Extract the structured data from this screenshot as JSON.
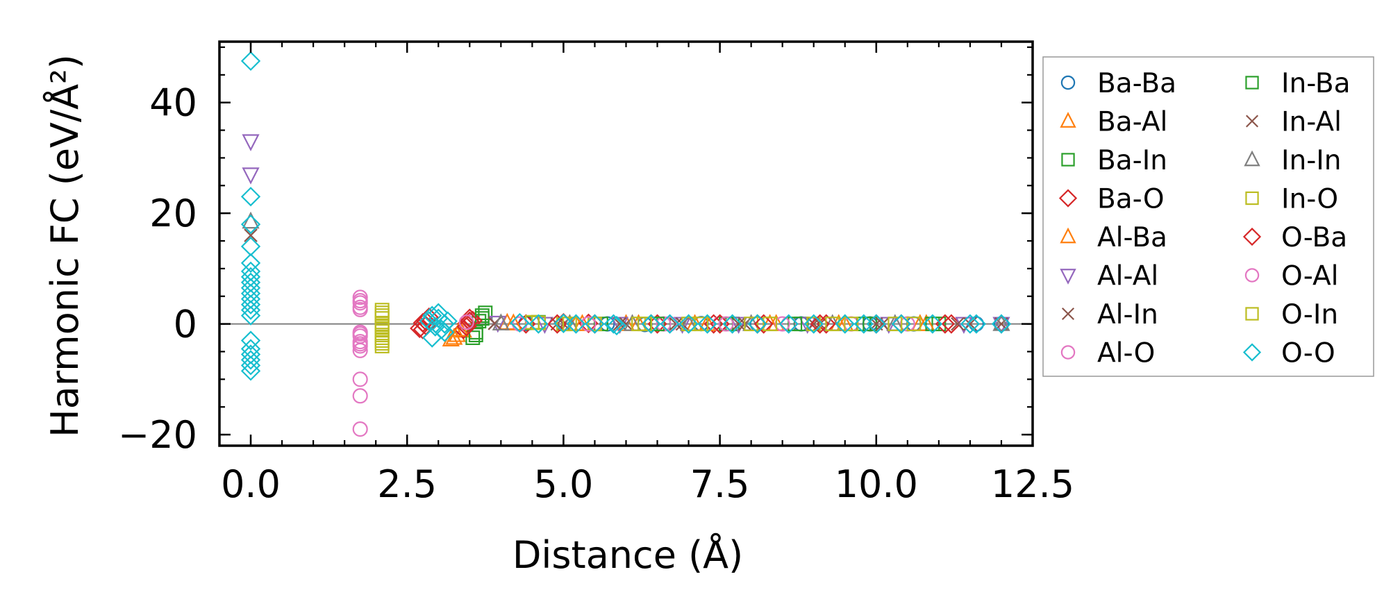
{
  "chart_data": {
    "type": "scatter",
    "title": "",
    "xlabel": "Distance (Å)",
    "ylabel": "Harmonic FC (eV/Å²)",
    "xlim": [
      -0.5,
      12.5
    ],
    "ylim": [
      -22,
      51
    ],
    "xticks": [
      0.0,
      2.5,
      5.0,
      7.5,
      10.0,
      12.5
    ],
    "xtick_labels": [
      "0.0",
      "2.5",
      "5.0",
      "7.5",
      "10.0",
      "12.5"
    ],
    "yticks": [
      -20,
      0,
      20,
      40
    ],
    "ytick_labels": [
      "−20",
      "0",
      "20",
      "40"
    ],
    "zero_line": true,
    "legend_position": "outside-right",
    "legend_columns": 2,
    "series": [
      {
        "name": "Ba-Ba",
        "marker": "circle",
        "color": "#1f77b4",
        "x": [
          4.4,
          5.7,
          6.3,
          7.2,
          8.1,
          8.8,
          9.9,
          10.6,
          11.6,
          12.0
        ],
        "y": [
          0.1,
          0.0,
          -0.1,
          0.05,
          0.0,
          0.0,
          0.0,
          0.0,
          0.0,
          0.0
        ]
      },
      {
        "name": "Ba-Al",
        "marker": "triangle-up",
        "color": "#ff7f0e",
        "x": [
          3.2,
          3.3,
          3.4,
          4.1,
          5.2,
          6.0,
          7.1,
          8.3,
          9.4,
          10.7
        ],
        "y": [
          -2.8,
          -2.0,
          -1.2,
          0.2,
          0.0,
          0.0,
          0.0,
          0.0,
          0.0,
          0.0
        ]
      },
      {
        "name": "Ba-In",
        "marker": "square",
        "color": "#2ca02c",
        "x": [
          3.55,
          3.6,
          3.65,
          3.7,
          3.75,
          4.6,
          5.6,
          6.6,
          7.7,
          8.8,
          9.9,
          11.0
        ],
        "y": [
          -2.5,
          -1.5,
          0.5,
          1.5,
          2.0,
          0.3,
          0.0,
          0.0,
          0.0,
          0.0,
          0.0,
          0.0
        ]
      },
      {
        "name": "Ba-O",
        "marker": "diamond",
        "color": "#d62728",
        "x": [
          2.75,
          2.8,
          2.85,
          3.4,
          3.45,
          3.5,
          3.55,
          4.4,
          5.0,
          5.5,
          6.5,
          7.4,
          8.1,
          9.2,
          10.4,
          11.2
        ],
        "y": [
          -1.0,
          0.5,
          1.2,
          -1.0,
          0.0,
          1.0,
          0.6,
          0.0,
          0.2,
          0.0,
          0.0,
          0.0,
          0.0,
          0.0,
          0.0,
          0.0
        ]
      },
      {
        "name": "Al-Ba",
        "marker": "triangle-up",
        "color": "#ff7f0e",
        "x": [
          3.25,
          3.35,
          4.2,
          5.3,
          6.2,
          7.3,
          8.4,
          9.5,
          10.8
        ],
        "y": [
          -2.5,
          -1.0,
          0.1,
          0.0,
          0.0,
          0.0,
          0.0,
          0.0,
          0.0
        ]
      },
      {
        "name": "Al-Al",
        "marker": "triangle-down",
        "color": "#9467bd",
        "x": [
          0.0,
          0.0,
          3.95,
          4.7,
          5.9,
          6.9,
          7.8,
          8.9,
          10.2,
          11.4,
          12.0
        ],
        "y": [
          33.0,
          27.0,
          0.2,
          0.0,
          0.0,
          0.0,
          0.0,
          0.0,
          0.0,
          0.0,
          0.0
        ]
      },
      {
        "name": "Al-In",
        "marker": "x",
        "color": "#8c564b",
        "x": [
          0.0,
          3.9,
          4.9,
          5.9,
          6.8,
          7.8,
          9.0,
          10.0,
          11.3,
          12.0
        ],
        "y": [
          16.0,
          0.1,
          0.0,
          0.0,
          0.0,
          0.0,
          0.0,
          0.0,
          0.0,
          0.0
        ]
      },
      {
        "name": "Al-O",
        "marker": "circle",
        "color": "#e377c2",
        "x": [
          1.75,
          1.75,
          1.75,
          1.75,
          1.75,
          1.75,
          1.75,
          1.75,
          1.75,
          1.75,
          1.75,
          3.5,
          4.3,
          5.5,
          6.6,
          7.5,
          8.6,
          9.6,
          10.5
        ],
        "y": [
          4.8,
          3.8,
          2.6,
          -1.5,
          -2.2,
          -3.2,
          -4.0,
          -4.8,
          -10.0,
          -13.0,
          -19.0,
          0.5,
          0.0,
          0.0,
          0.0,
          0.0,
          0.0,
          0.0,
          0.0
        ]
      },
      {
        "name": "In-Ba",
        "marker": "square",
        "color": "#2ca02c",
        "x": [
          3.6,
          3.7,
          4.5,
          5.5,
          6.5,
          7.6,
          8.7,
          9.8,
          10.9
        ],
        "y": [
          -2.0,
          1.0,
          0.2,
          0.0,
          0.0,
          0.0,
          0.0,
          0.0,
          0.0
        ]
      },
      {
        "name": "In-Al",
        "marker": "x",
        "color": "#8c564b",
        "x": [
          3.9,
          5.0,
          6.0,
          6.9,
          7.9,
          9.1,
          10.1,
          11.5
        ],
        "y": [
          0.1,
          0.0,
          0.0,
          0.0,
          0.0,
          0.0,
          0.0,
          0.0
        ]
      },
      {
        "name": "In-In",
        "marker": "triangle-up",
        "color": "#7f7f7f",
        "x": [
          0.0,
          4.0,
          5.1,
          6.1,
          7.0,
          8.0,
          9.3,
          10.3,
          12.0
        ],
        "y": [
          18.5,
          0.1,
          0.0,
          0.0,
          0.0,
          0.0,
          0.0,
          0.0,
          0.0
        ]
      },
      {
        "name": "In-O",
        "marker": "square",
        "color": "#bcbd22",
        "x": [
          2.1,
          2.1,
          2.1,
          2.1,
          2.1,
          2.1,
          2.1,
          2.1,
          4.5,
          5.0,
          5.5,
          6.2,
          7.0,
          8.0,
          9.0,
          9.6,
          10.6
        ],
        "y": [
          2.5,
          2.0,
          1.0,
          0.0,
          -1.0,
          -2.0,
          -3.0,
          -4.0,
          0.3,
          0.0,
          0.0,
          0.0,
          0.0,
          0.0,
          0.0,
          0.0,
          0.0
        ]
      },
      {
        "name": "O-Ba",
        "marker": "diamond",
        "color": "#d62728",
        "x": [
          2.7,
          2.75,
          2.8,
          3.45,
          3.5,
          4.9,
          5.4,
          6.4,
          7.5,
          8.2,
          9.1,
          10.0,
          11.1
        ],
        "y": [
          -0.8,
          0.2,
          -0.3,
          -0.5,
          0.5,
          0.0,
          0.1,
          0.0,
          0.0,
          0.0,
          0.0,
          0.0,
          0.0
        ]
      },
      {
        "name": "O-Al",
        "marker": "circle",
        "color": "#e377c2",
        "x": [
          1.75,
          1.75,
          1.75,
          1.75,
          3.45,
          4.3,
          5.4,
          6.7,
          7.6,
          8.5
        ],
        "y": [
          4.2,
          3.0,
          -1.8,
          -3.6,
          0.3,
          0.0,
          0.0,
          0.0,
          0.0,
          0.0
        ]
      },
      {
        "name": "O-In",
        "marker": "square",
        "color": "#bcbd22",
        "x": [
          2.1,
          2.1,
          2.1,
          2.1,
          4.6,
          5.1,
          6.3,
          7.2,
          8.3,
          9.3,
          10.3
        ],
        "y": [
          1.5,
          -0.5,
          -2.5,
          -3.5,
          0.2,
          0.0,
          0.0,
          0.0,
          0.0,
          0.0,
          0.0
        ]
      },
      {
        "name": "O-O",
        "marker": "diamond",
        "color": "#17becf",
        "x": [
          0.0,
          0.0,
          0.0,
          0.0,
          0.0,
          0.0,
          0.0,
          0.0,
          0.0,
          0.0,
          0.0,
          0.0,
          0.0,
          0.0,
          0.0,
          0.0,
          0.0,
          0.0,
          0.0,
          0.0,
          2.85,
          2.9,
          2.95,
          3.0,
          3.05,
          3.1,
          3.15,
          2.9,
          3.0,
          3.1,
          4.3,
          4.6,
          5.0,
          5.2,
          5.5,
          5.8,
          5.85,
          6.4,
          6.7,
          7.0,
          7.3,
          7.7,
          8.1,
          8.6,
          9.0,
          9.5,
          9.8,
          10.0,
          10.4,
          10.9,
          11.5,
          11.6,
          12.0
        ],
        "y": [
          47.5,
          23.0,
          18.0,
          14.0,
          11.0,
          9.5,
          8.5,
          7.5,
          6.5,
          5.5,
          4.5,
          3.5,
          2.5,
          1.5,
          -3.0,
          -4.5,
          -5.5,
          -6.5,
          -7.5,
          -8.5,
          0.5,
          1.5,
          -0.5,
          1.0,
          -1.0,
          0.0,
          0.5,
          -2.5,
          2.0,
          -1.5,
          0.2,
          0.0,
          0.1,
          0.0,
          0.0,
          0.0,
          -0.3,
          0.0,
          0.0,
          0.0,
          0.0,
          0.0,
          0.0,
          0.0,
          0.0,
          0.0,
          0.0,
          0.0,
          0.0,
          0.0,
          0.0,
          0.0,
          0.0
        ]
      }
    ]
  }
}
